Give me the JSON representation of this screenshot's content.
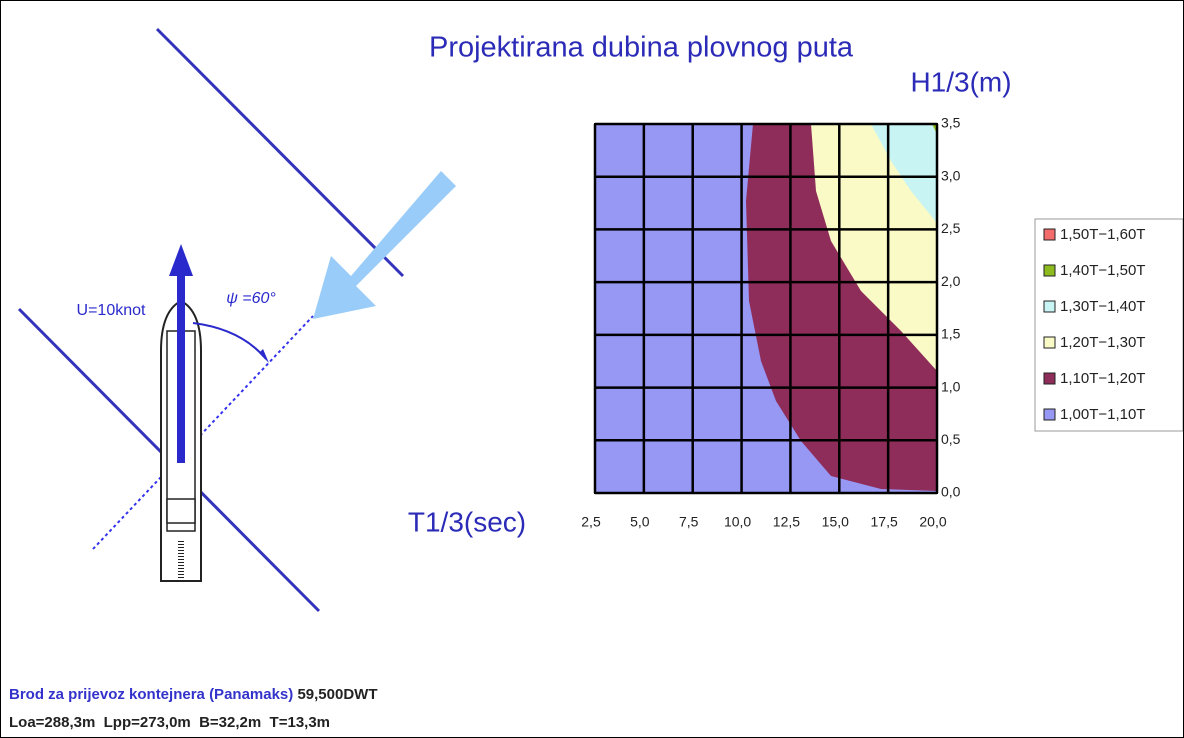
{
  "title": "Projektirana dubina plovnog puta",
  "y_axis_label": "H1/3(m)",
  "x_axis_label": "T1/3(sec)",
  "x_ticks": [
    "2,5",
    "5,0",
    "7,5",
    "10,0",
    "12,5",
    "15,0",
    "17,5",
    "20,0"
  ],
  "y_ticks": [
    "0,0",
    "0,5",
    "1,0",
    "1,5",
    "2,0",
    "2,5",
    "3,0",
    "3,5"
  ],
  "legend": [
    {
      "label": "1,50T−1,60T",
      "color": "#f36b6b"
    },
    {
      "label": "1,40T−1,50T",
      "color": "#8dbb1e"
    },
    {
      "label": "1,30T−1,40T",
      "color": "#c8f4f4"
    },
    {
      "label": "1,20T−1,30T",
      "color": "#fafac6"
    },
    {
      "label": "1,10T−1,20T",
      "color": "#8f2d5a"
    },
    {
      "label": "1,00T−1,10T",
      "color": "#9797f4"
    }
  ],
  "ship": {
    "speed": "U=10knot",
    "angle": "ψ =60°"
  },
  "caption": {
    "vessel": "Brod za prijevoz kontejnera",
    "class": "(Panamaks)",
    "dwt": "59,500DWT",
    "dimensions": "Loa=288,3m  Lpp=273,0m  B=32,2m  T=13,3m"
  }
}
